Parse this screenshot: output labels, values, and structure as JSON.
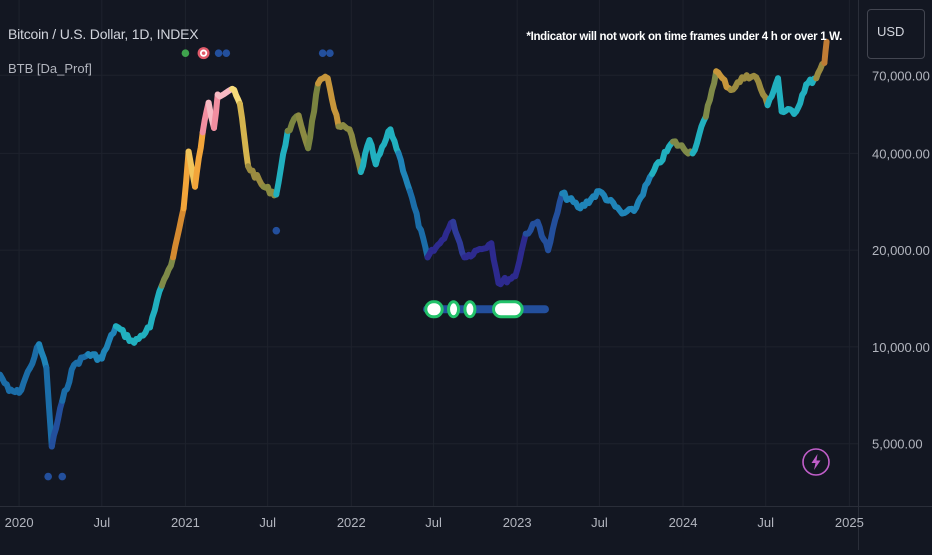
{
  "header": {
    "symbol": "Bitcoin / U.S. Dollar, 1D, INDEX",
    "indicator": "BTB [Da_Prof]",
    "notice": "*Indicator will not work on time frames under 4 h or over 1 W.",
    "currency": "USD"
  },
  "colors": {
    "background": "#131722",
    "grid": "#1e222d",
    "axis_text": "#b2b5be",
    "lightning": "#c05ec9"
  },
  "icons": {
    "snapshot": "lightning-icon"
  },
  "chart_data": {
    "type": "line",
    "title": "Bitcoin / U.S. Dollar, 1D, INDEX",
    "y_scale": "log",
    "ylim": [
      3200,
      120000
    ],
    "xlim": [
      "2019-11-20",
      "2025-01-20"
    ],
    "grid": true,
    "y_ticks": [
      {
        "value": 5000,
        "label": "5,000.00"
      },
      {
        "value": 10000,
        "label": "10,000.00"
      },
      {
        "value": 20000,
        "label": "20,000.00"
      },
      {
        "value": 40000,
        "label": "40,000.00"
      },
      {
        "value": 70000,
        "label": "70,000.00"
      }
    ],
    "x_ticks": [
      {
        "value": "2020-01-01",
        "label": "2020"
      },
      {
        "value": "2020-07-01",
        "label": "Jul"
      },
      {
        "value": "2021-01-01",
        "label": "2021"
      },
      {
        "value": "2021-07-01",
        "label": "Jul"
      },
      {
        "value": "2022-01-01",
        "label": "2022"
      },
      {
        "value": "2022-07-01",
        "label": "Jul"
      },
      {
        "value": "2023-01-01",
        "label": "2023"
      },
      {
        "value": "2023-07-01",
        "label": "Jul"
      },
      {
        "value": "2024-01-01",
        "label": "2024"
      },
      {
        "value": "2024-07-01",
        "label": "Jul"
      },
      {
        "value": "2025-01-01",
        "label": "2025"
      }
    ],
    "series": [
      {
        "values": [
          {
            "date": "2019-11-20",
            "price": 8200,
            "color": "#1b6da8"
          },
          {
            "date": "2019-12-10",
            "price": 7300,
            "color": "#1b6da8"
          },
          {
            "date": "2020-01-01",
            "price": 7200,
            "color": "#1b6da8"
          },
          {
            "date": "2020-01-25",
            "price": 8600,
            "color": "#1b6da8"
          },
          {
            "date": "2020-02-14",
            "price": 10200,
            "color": "#1f84b8"
          },
          {
            "date": "2020-03-01",
            "price": 8600,
            "color": "#1b6da8"
          },
          {
            "date": "2020-03-13",
            "price": 4900,
            "color": "#234f9c"
          },
          {
            "date": "2020-04-05",
            "price": 6800,
            "color": "#1b6da8"
          },
          {
            "date": "2020-05-01",
            "price": 8800,
            "color": "#1b6da8"
          },
          {
            "date": "2020-06-01",
            "price": 9500,
            "color": "#1f84b8"
          },
          {
            "date": "2020-07-01",
            "price": 9200,
            "color": "#1f84b8"
          },
          {
            "date": "2020-08-01",
            "price": 11600,
            "color": "#21b0bf"
          },
          {
            "date": "2020-09-10",
            "price": 10300,
            "color": "#21b0bf"
          },
          {
            "date": "2020-10-15",
            "price": 11500,
            "color": "#21b0bf"
          },
          {
            "date": "2020-11-10",
            "price": 15500,
            "color": "#7f8a48"
          },
          {
            "date": "2020-12-05",
            "price": 19000,
            "color": "#d58a30"
          },
          {
            "date": "2020-12-28",
            "price": 27000,
            "color": "#f2a53a"
          },
          {
            "date": "2021-01-08",
            "price": 40500,
            "color": "#f1c45a"
          },
          {
            "date": "2021-01-22",
            "price": 31500,
            "color": "#f2a53a"
          },
          {
            "date": "2021-02-08",
            "price": 46500,
            "color": "#f28ea0"
          },
          {
            "date": "2021-02-21",
            "price": 57500,
            "color": "#f7b9c3"
          },
          {
            "date": "2021-03-05",
            "price": 48000,
            "color": "#f28ea0"
          },
          {
            "date": "2021-03-13",
            "price": 61000,
            "color": "#f7b9c3"
          },
          {
            "date": "2021-04-14",
            "price": 63500,
            "color": "#f7dc7a"
          },
          {
            "date": "2021-05-01",
            "price": 57000,
            "color": "#d4b44e"
          },
          {
            "date": "2021-05-19",
            "price": 36500,
            "color": "#9b8b40"
          },
          {
            "date": "2021-06-22",
            "price": 31500,
            "color": "#8a8b42"
          },
          {
            "date": "2021-07-20",
            "price": 29800,
            "color": "#21b0bf"
          },
          {
            "date": "2021-08-14",
            "price": 47000,
            "color": "#7a8440"
          },
          {
            "date": "2021-09-07",
            "price": 52500,
            "color": "#8b8a42"
          },
          {
            "date": "2021-09-28",
            "price": 41500,
            "color": "#7a8440"
          },
          {
            "date": "2021-10-20",
            "price": 66000,
            "color": "#c7963b"
          },
          {
            "date": "2021-11-10",
            "price": 68500,
            "color": "#c7963b"
          },
          {
            "date": "2021-12-04",
            "price": 48500,
            "color": "#8b8a42"
          },
          {
            "date": "2021-12-28",
            "price": 47500,
            "color": "#8b8a42"
          },
          {
            "date": "2022-01-22",
            "price": 35000,
            "color": "#21b0bf"
          },
          {
            "date": "2022-02-10",
            "price": 44000,
            "color": "#21b0bf"
          },
          {
            "date": "2022-02-24",
            "price": 37000,
            "color": "#21b0bf"
          },
          {
            "date": "2022-03-28",
            "price": 47500,
            "color": "#21b0bf"
          },
          {
            "date": "2022-04-15",
            "price": 40000,
            "color": "#1f84b8"
          },
          {
            "date": "2022-05-10",
            "price": 30500,
            "color": "#1b6da8"
          },
          {
            "date": "2022-06-18",
            "price": 19000,
            "color": "#2d2a8e"
          },
          {
            "date": "2022-07-15",
            "price": 21000,
            "color": "#2d2a8e"
          },
          {
            "date": "2022-08-13",
            "price": 24500,
            "color": "#2f3b99"
          },
          {
            "date": "2022-09-07",
            "price": 19000,
            "color": "#2d2a8e"
          },
          {
            "date": "2022-10-05",
            "price": 20000,
            "color": "#2d2a8e"
          },
          {
            "date": "2022-11-05",
            "price": 21000,
            "color": "#2d2a8e"
          },
          {
            "date": "2022-11-21",
            "price": 15800,
            "color": "#2d2a8e"
          },
          {
            "date": "2022-12-28",
            "price": 16600,
            "color": "#2d2a8e"
          },
          {
            "date": "2023-01-20",
            "price": 22500,
            "color": "#234f9c"
          },
          {
            "date": "2023-02-15",
            "price": 24500,
            "color": "#234f9c"
          },
          {
            "date": "2023-03-10",
            "price": 20000,
            "color": "#234f9c"
          },
          {
            "date": "2023-04-10",
            "price": 30000,
            "color": "#1f84b8"
          },
          {
            "date": "2023-05-20",
            "price": 27000,
            "color": "#1f84b8"
          },
          {
            "date": "2023-07-01",
            "price": 30500,
            "color": "#1f84b8"
          },
          {
            "date": "2023-08-20",
            "price": 26000,
            "color": "#1f84b8"
          },
          {
            "date": "2023-09-15",
            "price": 26500,
            "color": "#1f84b8"
          },
          {
            "date": "2023-10-25",
            "price": 34500,
            "color": "#21b0bf"
          },
          {
            "date": "2023-12-10",
            "price": 43500,
            "color": "#7f8a48"
          },
          {
            "date": "2024-01-22",
            "price": 40000,
            "color": "#21b0bf"
          },
          {
            "date": "2024-02-20",
            "price": 52000,
            "color": "#7f8a48"
          },
          {
            "date": "2024-03-14",
            "price": 72000,
            "color": "#c7963b"
          },
          {
            "date": "2024-04-15",
            "price": 63000,
            "color": "#9b8b40"
          },
          {
            "date": "2024-05-20",
            "price": 70000,
            "color": "#9b8b40"
          },
          {
            "date": "2024-06-10",
            "price": 69000,
            "color": "#9b8b40"
          },
          {
            "date": "2024-07-05",
            "price": 56500,
            "color": "#21b0bf"
          },
          {
            "date": "2024-07-28",
            "price": 68500,
            "color": "#21b0bf"
          },
          {
            "date": "2024-08-05",
            "price": 54000,
            "color": "#21b0bf"
          },
          {
            "date": "2024-09-06",
            "price": 54000,
            "color": "#21b0bf"
          },
          {
            "date": "2024-09-28",
            "price": 65500,
            "color": "#21b0bf"
          },
          {
            "date": "2024-10-20",
            "price": 68500,
            "color": "#9b8b40"
          },
          {
            "date": "2024-11-07",
            "price": 76500,
            "color": "#c07c35"
          },
          {
            "date": "2024-11-12",
            "price": 89000,
            "color": "#c07c35"
          }
        ]
      }
    ],
    "markers": [
      {
        "date": "2021-01-01",
        "price": 82000,
        "color": "#3fa34d",
        "shape": "dot"
      },
      {
        "date": "2021-02-10",
        "price": 82000,
        "color": "#e05a6a",
        "shape": "ring"
      },
      {
        "date": "2021-03-15",
        "price": 82000,
        "color": "#234f9c",
        "shape": "dot"
      },
      {
        "date": "2021-04-01",
        "price": 82000,
        "color": "#234f9c",
        "shape": "dot"
      },
      {
        "date": "2021-10-30",
        "price": 82000,
        "color": "#234f9c",
        "shape": "dot"
      },
      {
        "date": "2021-11-15",
        "price": 82000,
        "color": "#234f9c",
        "shape": "dot"
      },
      {
        "date": "2021-07-20",
        "price": 23000,
        "color": "#234f9c",
        "shape": "dot"
      },
      {
        "date": "2020-03-05",
        "price": 3950,
        "color": "#234f9c",
        "shape": "dot"
      },
      {
        "date": "2020-04-05",
        "price": 3950,
        "color": "#234f9c",
        "shape": "dot"
      }
    ],
    "bands": [
      {
        "start": "2022-06-08",
        "end": "2023-03-12",
        "price": 13100,
        "color": "#234f9c"
      }
    ],
    "pills": [
      {
        "start": "2022-06-14",
        "end": "2022-07-20",
        "price": 13100
      },
      {
        "start": "2022-08-03",
        "end": "2022-08-17",
        "price": 13100
      },
      {
        "start": "2022-09-08",
        "end": "2022-09-28",
        "price": 13100
      },
      {
        "start": "2022-11-10",
        "end": "2023-01-12",
        "price": 13100
      }
    ]
  }
}
